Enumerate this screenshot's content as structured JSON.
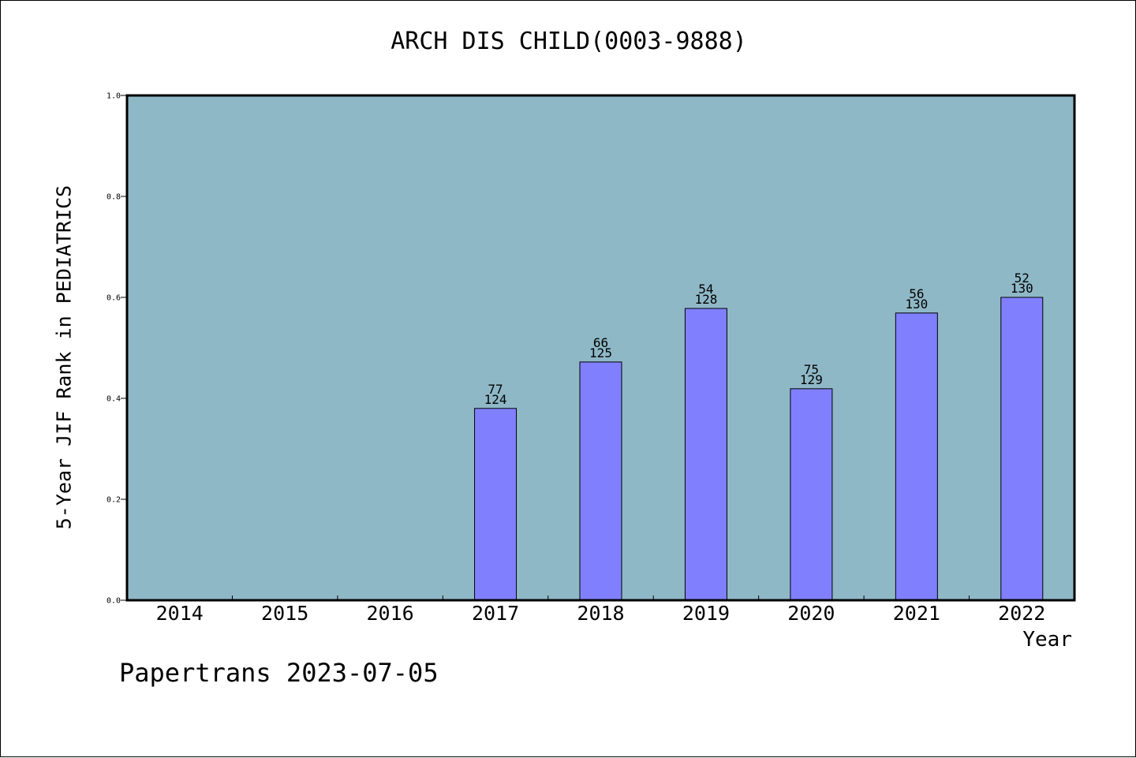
{
  "chart_data": {
    "type": "bar",
    "title": "ARCH DIS CHILD(0003-9888)",
    "xlabel": "Year",
    "ylabel": "5-Year JIF Rank in PEDIATRICS",
    "ylim": [
      0,
      1.0
    ],
    "yticks": [
      "0.0",
      "0.2",
      "0.4",
      "0.6",
      "0.8",
      "1.0"
    ],
    "categories": [
      "2014",
      "2015",
      "2016",
      "2017",
      "2018",
      "2019",
      "2020",
      "2021",
      "2022"
    ],
    "values": [
      null,
      null,
      null,
      0.38,
      0.472,
      0.578,
      0.419,
      0.569,
      0.6
    ],
    "rank": [
      null,
      null,
      null,
      "77",
      "66",
      "54",
      "75",
      "56",
      "52"
    ],
    "total": [
      null,
      null,
      null,
      "124",
      "125",
      "128",
      "129",
      "130",
      "130"
    ],
    "grid": false,
    "colors": {
      "plot_background": "#8fb8c7",
      "bar": "#8080ff"
    }
  },
  "footer": "Papertrans 2023-07-05"
}
